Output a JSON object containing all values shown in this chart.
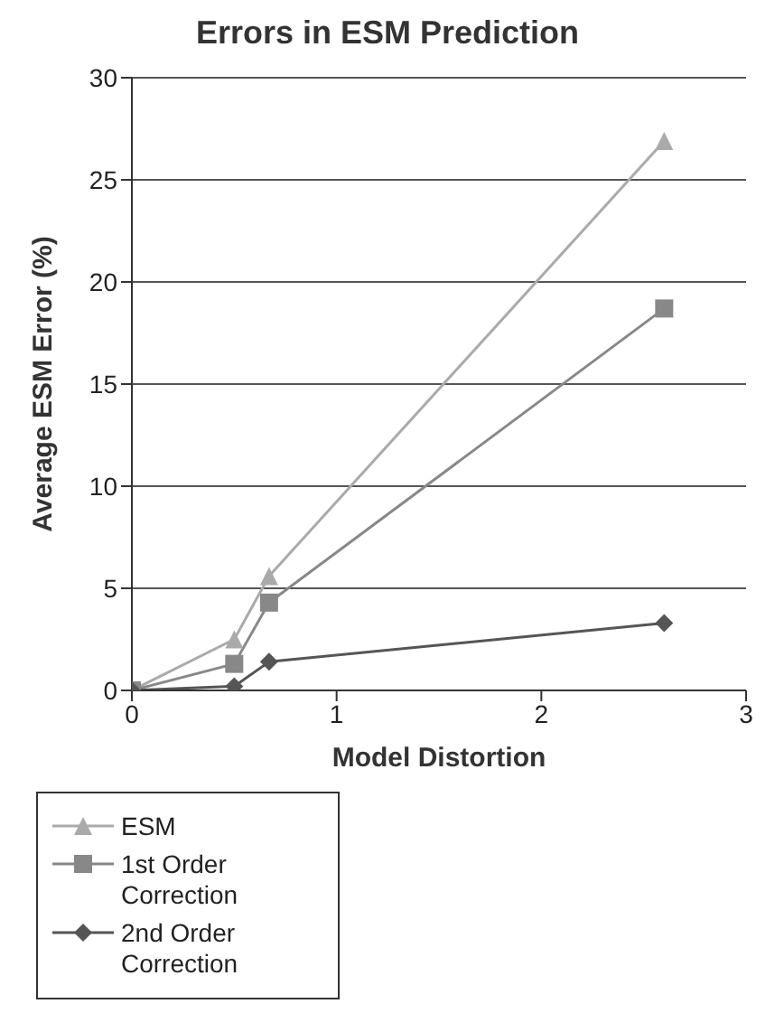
{
  "chart_data": {
    "type": "line",
    "title": "Errors in ESM Prediction",
    "xlabel": "Model Distortion",
    "ylabel": "Average ESM Error (%)",
    "x": [
      0,
      0.5,
      0.67,
      2.6
    ],
    "series": [
      {
        "name": "ESM",
        "color": "#aaaaaa",
        "marker": "triangle",
        "values": [
          0,
          2.5,
          5.6,
          26.9
        ]
      },
      {
        "name": "1st Order Correction",
        "color": "#888888",
        "marker": "square",
        "values": [
          0,
          1.3,
          4.3,
          18.7
        ]
      },
      {
        "name": "2nd Order Correction",
        "color": "#555555",
        "marker": "diamond",
        "values": [
          0,
          0.2,
          1.4,
          3.3
        ]
      }
    ],
    "xlim": [
      0,
      3
    ],
    "xticks": [
      0,
      1,
      2,
      3
    ],
    "ylim": [
      0,
      30
    ],
    "yticks": [
      0,
      5,
      10,
      15,
      20,
      25,
      30
    ],
    "grid": "y",
    "legend": "bottom left"
  }
}
